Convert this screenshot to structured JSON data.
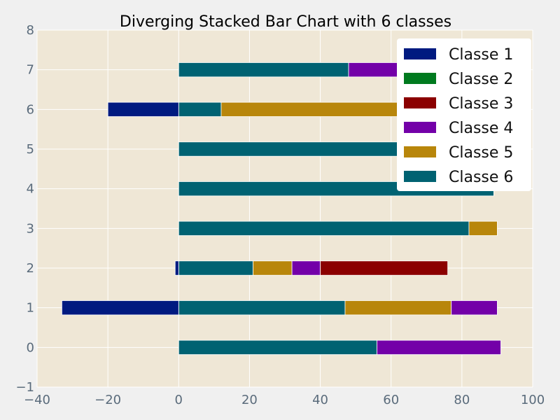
{
  "chart_data": {
    "type": "bar",
    "orientation": "horizontal",
    "stacked": true,
    "diverging": true,
    "title": "Diverging Stacked Bar Chart with 6 classes",
    "xlabel": "",
    "ylabel": "",
    "xlim": [
      -40,
      100
    ],
    "ylim": [
      -1,
      8
    ],
    "xticks": [
      -40,
      -20,
      0,
      20,
      40,
      60,
      80,
      100
    ],
    "yticks": [
      -1,
      0,
      1,
      2,
      3,
      4,
      5,
      6,
      7,
      8
    ],
    "grid": true,
    "legend_position": "top-right",
    "categories": [
      0,
      1,
      2,
      3,
      4,
      5,
      6,
      7
    ],
    "series": [
      {
        "name": "Classe 1",
        "color": "#001a80",
        "values": [
          0,
          -33,
          -1,
          0,
          0,
          0,
          -20,
          0
        ]
      },
      {
        "name": "Classe 2",
        "color": "#007a1f",
        "values": [
          0,
          0,
          0,
          0,
          0,
          0,
          0,
          0.5
        ]
      },
      {
        "name": "Classe 3",
        "color": "#8b0000",
        "values": [
          0,
          0,
          36,
          0,
          0,
          0,
          0,
          0
        ]
      },
      {
        "name": "Classe 4",
        "color": "#7300a8",
        "values": [
          35,
          13,
          8,
          0,
          0,
          0,
          0,
          14
        ]
      },
      {
        "name": "Classe 5",
        "color": "#b8860b",
        "values": [
          0,
          30,
          11,
          8,
          0,
          0,
          50,
          0
        ]
      },
      {
        "name": "Classe 6",
        "color": "#006272",
        "values": [
          56,
          47,
          21,
          82,
          89,
          62,
          12,
          48
        ]
      }
    ],
    "positive_stack_order": [
      "Classe 6",
      "Classe 5",
      "Classe 4",
      "Classe 3",
      "Classe 2"
    ],
    "negative_stack_order": [
      "Classe 1"
    ]
  }
}
